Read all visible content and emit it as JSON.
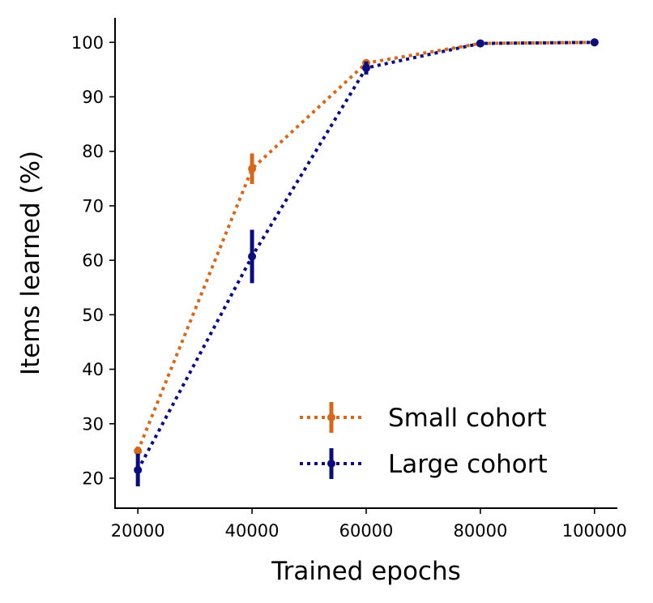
{
  "chart_data": {
    "type": "line",
    "title": "",
    "xlabel": "Trained epochs",
    "ylabel": "Items learned (%)",
    "x": [
      20000,
      40000,
      60000,
      80000,
      100000
    ],
    "xticks": [
      20000,
      40000,
      60000,
      80000,
      100000
    ],
    "xlim": [
      16000,
      104000
    ],
    "yticks": [
      20,
      30,
      40,
      50,
      60,
      70,
      80,
      90,
      100
    ],
    "ylim": [
      14.5,
      104.5
    ],
    "grid": false,
    "legend_position": "lower-right",
    "series": [
      {
        "name": "Small cohort",
        "color": "#d2691e",
        "linestyle": "dotted",
        "values": [
          25.0,
          76.8,
          96.2,
          99.8,
          100.0
        ],
        "errors": [
          0.8,
          2.8,
          0.6,
          0.2,
          0.0
        ]
      },
      {
        "name": "Large cohort",
        "color": "#0c0c7a",
        "linestyle": "dotted",
        "values": [
          21.5,
          60.7,
          95.3,
          99.8,
          100.0
        ],
        "errors": [
          3.0,
          4.9,
          1.2,
          0.2,
          0.0
        ]
      }
    ]
  }
}
